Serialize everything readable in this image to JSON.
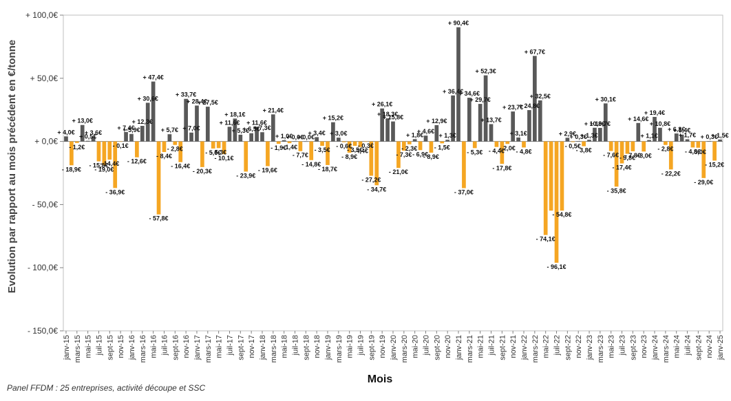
{
  "chart_data": {
    "type": "bar",
    "ylabel": "Evolution par rapport au mois précédent en €/tonne",
    "xlabel": "Mois",
    "ylim": [
      -150,
      100
    ],
    "yticks": [
      -150,
      -100,
      -50,
      0,
      50,
      100
    ],
    "ytick_labels": [
      "- 150,0€",
      "- 100,0€",
      "- 50,0€",
      "+ 0,0€",
      "+ 50,0€",
      "+ 100,0€"
    ],
    "colors": {
      "positive": "#595959",
      "negative": "#F5A623"
    },
    "x_tick_labels": [
      "janv-15",
      "mars-15",
      "mai-15",
      "juil-15",
      "sept-15",
      "nov-15",
      "janv-16",
      "mars-16",
      "mai-16",
      "juil-16",
      "sept-16",
      "nov-16",
      "janv-17",
      "mars-17",
      "mai-17",
      "juil-17",
      "sept-17",
      "nov-17",
      "janv-18",
      "mars-18",
      "mai-18",
      "juil-18",
      "sept-18",
      "nov-18",
      "janv-19",
      "mars-19",
      "mai-19",
      "juil-19",
      "sept-19",
      "nov-19",
      "janv-20",
      "mars-20",
      "mai-20",
      "juil-20",
      "sept-20",
      "nov-20",
      "janv-21",
      "mars-21",
      "mai-21",
      "juil-21",
      "sept-21",
      "nov-21",
      "janv-22",
      "mars-22",
      "mai-22",
      "juil-22",
      "sept-22",
      "nov-22",
      "janv-23",
      "mars-23",
      "mai-23",
      "juil-23",
      "sept-23",
      "nov-23",
      "janv-24",
      "mars-24",
      "mai-24",
      "juil-24",
      "sept-24",
      "nov-24",
      "janv-25"
    ],
    "values": [
      4.0,
      -18.9,
      -1.2,
      13.0,
      0.5,
      3.6,
      -15.8,
      -19.0,
      -14.4,
      -36.9,
      -0.1,
      7.4,
      5.9,
      -12.6,
      12.3,
      30.6,
      47.4,
      -57.8,
      -8.4,
      5.7,
      -2.8,
      -16.4,
      33.7,
      7.0,
      28.4,
      -20.3,
      27.5,
      -5.6,
      -5.3,
      -10.1,
      11.6,
      18.1,
      5.3,
      -23.9,
      6.5,
      11.6,
      7.3,
      -19.6,
      21.4,
      -1.9,
      1.0,
      -1.4,
      0.0,
      -7.7,
      0.0,
      -14.8,
      3.4,
      -3.5,
      -18.7,
      15.2,
      3.0,
      -0.6,
      -8.9,
      -3.5,
      -4.4,
      -0.3,
      -27.2,
      -34.7,
      26.1,
      18.3,
      15.8,
      -21.0,
      -7.3,
      -2.3,
      1.8,
      -6.9,
      4.6,
      -8.9,
      12.9,
      -1.5,
      1.3,
      36.4,
      90.4,
      -37.0,
      34.6,
      -5.3,
      29.7,
      52.3,
      13.7,
      -4.4,
      -17.8,
      -2.0,
      23.7,
      3.1,
      -4.8,
      24.8,
      67.7,
      32.5,
      -74.1,
      -54.8,
      -96.1,
      -54.8,
      2.9,
      -0.5,
      0.3,
      -3.8,
      1.3,
      10.8,
      10.7,
      30.1,
      -7.6,
      -35.8,
      -17.4,
      -9.8,
      -7.8,
      14.6,
      -8.0,
      1.1,
      19.4,
      10.8,
      -2.8,
      -22.2,
      6.3,
      5.4,
      1.7,
      -4.8,
      -5.0,
      -29.0,
      0.3,
      -15.2,
      1.5
    ],
    "labels": [
      "+ 4,0€",
      "- 18,9€",
      "- 1,2€",
      "+ 13,0€",
      "+ 0,5€",
      "+ 3,6€",
      "- 15,8€",
      "- 19,0€",
      "- 14,4€",
      "- 36,9€",
      "- 0,1€",
      "+ 7,4€",
      "+ 5,9€",
      "- 12,6€",
      "+ 12,3€",
      "+ 30,6€",
      "+ 47,4€",
      "- 57,8€",
      "- 8,4€",
      "+ 5,7€",
      "- 2,8€",
      "- 16,4€",
      "+ 33,7€",
      "+ 7,0€",
      "+ 28,4€",
      "- 20,3€",
      "+ 27,5€",
      "- 5,6€",
      "- 5,3€",
      "- 10,1€",
      "+ 11,6€",
      "+ 18,1€",
      "+ 5,3€",
      "- 23,9€",
      "+ 6,5€",
      "+ 11,6€",
      "+ 7,3€",
      "- 19,6€",
      "+ 21,4€",
      "- 1,9€",
      "+ 1,0€",
      "- 1,4€",
      "+ 0,0€",
      "- 7,7€",
      "+ 0,0€",
      "- 14,8€",
      "+ 3,4€",
      "- 3,5€",
      "- 18,7€",
      "+ 15,2€",
      "+ 3,0€",
      "- 0,6€",
      "- 8,9€",
      "- 3,5€",
      "- 4,4€",
      "- 0,3€",
      "- 27,2€",
      "- 34,7€",
      "+ 26,1€",
      "+ 18,3€",
      "+ 15,8€",
      "- 21,0€",
      "- 7,3€",
      "- 2,3€",
      "+ 1,8€",
      "- 6,9€",
      "+ 4,6€",
      "- 8,9€",
      "+ 12,9€",
      "- 1,5€",
      "+ 1,3€",
      "+ 36,4€",
      "+ 90,4€",
      "- 37,0€",
      "+ 34,6€",
      "- 5,3€",
      "+ 29,7€",
      "+ 52,3€",
      "+ 13,7€",
      "- 4,4€",
      "- 17,8€",
      "- 2,0€",
      "+ 23,7€",
      "+ 3,1€",
      "- 4,8€",
      "+ 24,8€",
      "+ 67,7€",
      "+ 32,5€",
      "- 74,1€",
      "",
      "- 96,1€",
      "- 54,8€",
      "+ 2,9€",
      "- 0,5€",
      "+ 0,3€",
      "- 3,8€",
      "+ 1,3€",
      "+ 10,8€",
      "+ 10,7€",
      "+ 30,1€",
      "- 7,6€",
      "- 35,8€",
      "- 17,4€",
      "- 9,8€",
      "- 7,8€",
      "+ 14,6€",
      "- 8,0€",
      "+ 1,1€",
      "+ 19,4€",
      "+ 10,8€",
      "- 2,8€",
      "- 22,2€",
      "+ 6,3€",
      "+ 5,4€",
      "+ 1,7€",
      "- 4,8€",
      "- 5,0€",
      "- 29,0€",
      "+ 0,3€",
      "- 15,2€",
      "+ 1,5€"
    ]
  },
  "footer": {
    "source_note": "Panel FFDM : 25 entreprises, activité découpe et SSC"
  }
}
